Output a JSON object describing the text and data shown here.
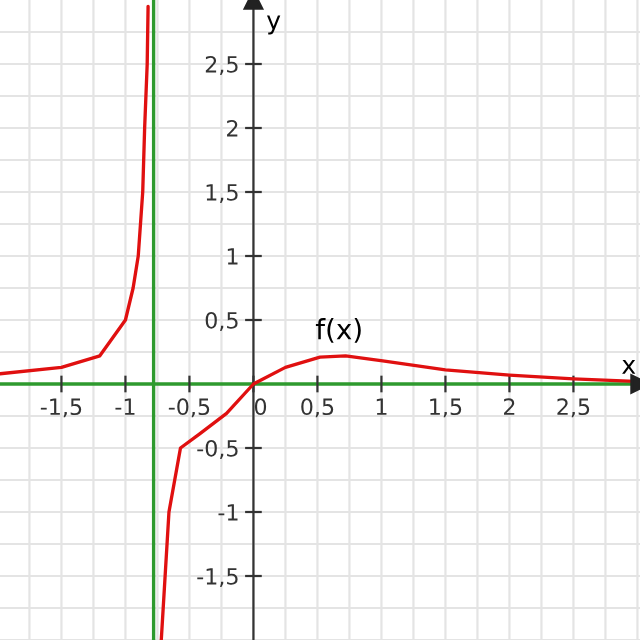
{
  "chart_data": {
    "type": "line",
    "xlabel": "x",
    "ylabel": "y",
    "xlim": [
      -1.98,
      3.02
    ],
    "ylim": [
      -2,
      3
    ],
    "xticks": [
      {
        "value": -1.5,
        "label": "-1,5"
      },
      -1,
      {
        "value": -0.5,
        "label": "-0,5"
      },
      0,
      {
        "value": 0.5,
        "label": "0,5"
      },
      1,
      {
        "value": 1.5,
        "label": "1,5"
      },
      2,
      {
        "value": 2.5,
        "label": "2,5"
      }
    ],
    "yticks": [
      {
        "value": -1.5,
        "label": "-1,5"
      },
      -1,
      {
        "value": -0.5,
        "label": "-0,5"
      },
      {
        "value": 0.5,
        "label": "0,5"
      },
      1,
      {
        "value": 1.5,
        "label": "1,5"
      },
      2,
      {
        "value": 2.5,
        "label": "2,5"
      }
    ],
    "grid": true,
    "series": [
      {
        "color": "#e01010",
        "x": [
          -1.98,
          -1.5,
          -1.2,
          -1.0,
          -0.94,
          -0.9,
          -0.865,
          -0.85,
          -0.83,
          -0.823,
          null,
          -0.72,
          -0.69,
          -0.66,
          -0.57,
          -0.42,
          -0.21,
          0,
          0.25,
          0.52,
          0.72,
          1.01,
          1.5,
          2.0,
          2.5,
          2.98
        ],
        "values": [
          0.08,
          0.13,
          0.22,
          0.5,
          0.75,
          1.0,
          1.5,
          2.0,
          2.5,
          2.95,
          null,
          -2.0,
          -1.5,
          -1.0,
          -0.5,
          -0.39,
          -0.23,
          0,
          0.13,
          0.21,
          0.22,
          0.18,
          0.11,
          0.07,
          0.04,
          0.02
        ]
      }
    ],
    "ref_lines": [
      {
        "axis": "x",
        "value": -0.78,
        "color": "#2e9a2e"
      }
    ],
    "annotations": [
      {
        "text": "f(x)",
        "x": 0.7,
        "y": 0.22
      }
    ]
  }
}
